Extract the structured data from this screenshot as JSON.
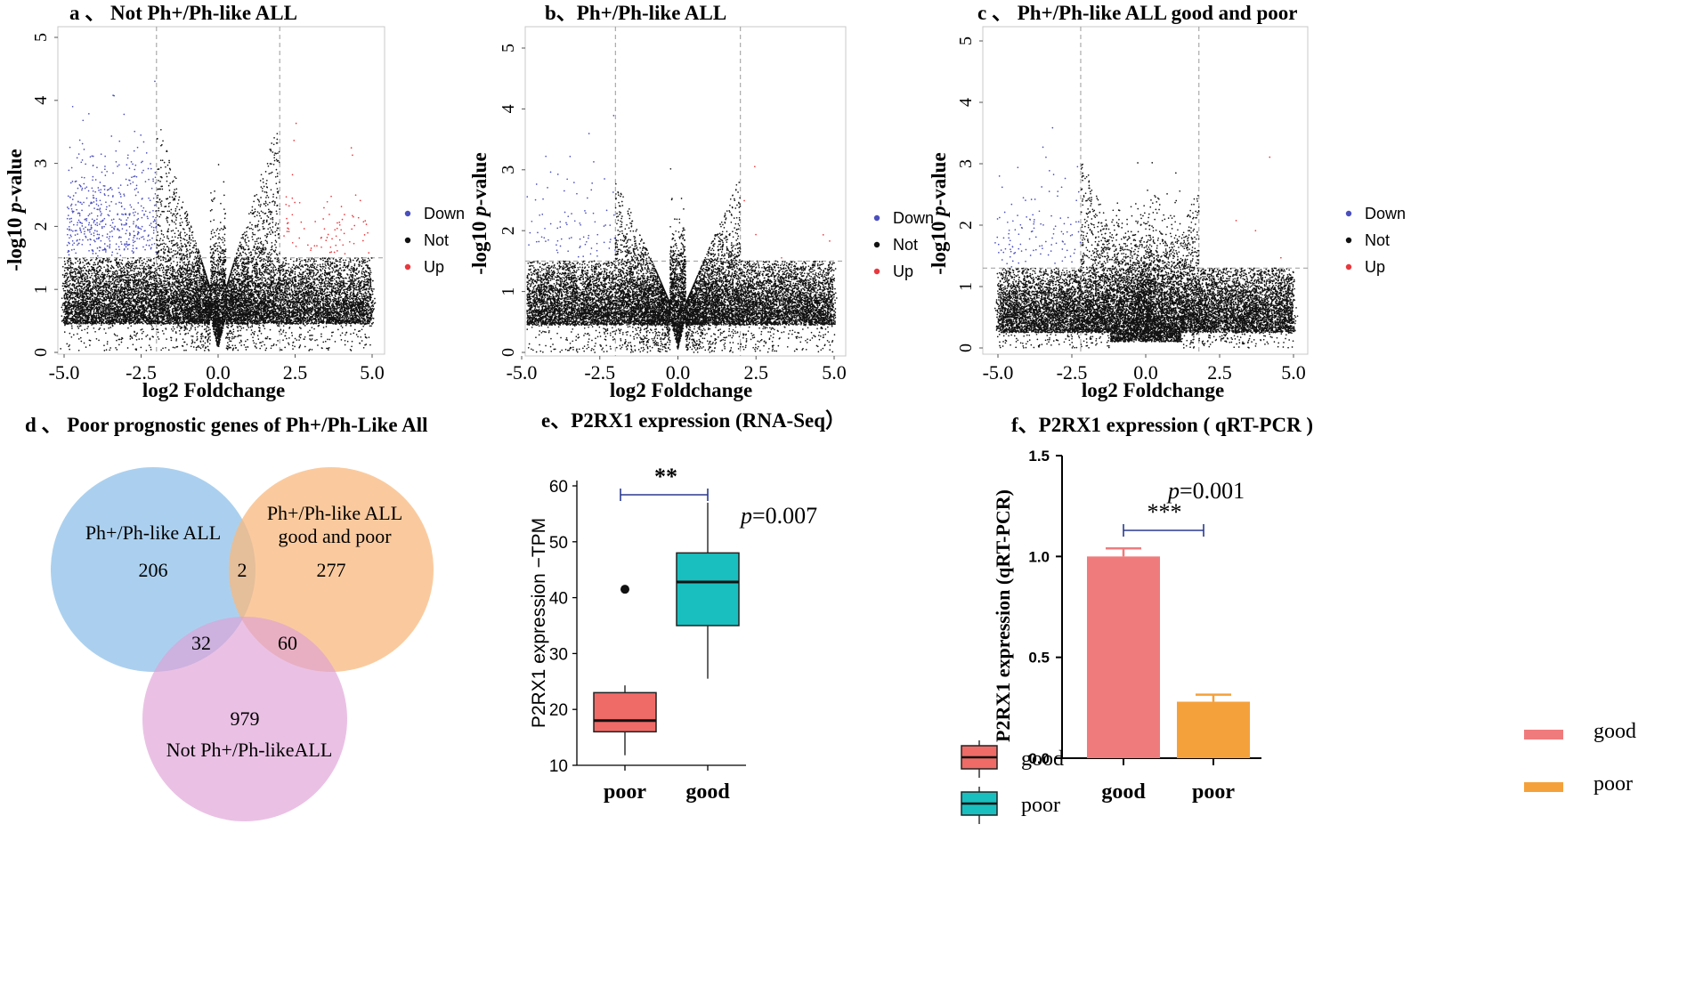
{
  "colors": {
    "down": "#4b4fbd",
    "not": "#111111",
    "up": "#e8383d",
    "venn_blue": "#8fc0ea",
    "venn_orange": "#f8b87e",
    "venn_pink": "#df9fd6",
    "box_good": "#ef6b67",
    "box_poor": "#19bfbf",
    "bar_good": "#f07b7d",
    "bar_poor": "#f5a13b",
    "bracket": "#2b3a8f"
  },
  "chart_data": [
    {
      "type": "scatter",
      "panel": "a",
      "title": "a 、 Not Ph+/Ph-like ALL",
      "xlabel": "log2 Foldchange",
      "ylabel_prefix": "-log10 ",
      "ylabel_italic": "p",
      "ylabel_suffix": "-value",
      "xlim": [
        -5.2,
        5.3
      ],
      "ylim": [
        0,
        5.2
      ],
      "xticks": [
        -5.0,
        -2.5,
        0.0,
        2.5,
        5.0
      ],
      "xtick_labels": [
        "-5.0",
        "-2.5",
        "0.0",
        "2.5",
        "5.0"
      ],
      "yticks": [
        0,
        1,
        2,
        3,
        4,
        5
      ],
      "ytick_labels": [
        "0",
        "1",
        "2",
        "3",
        "4",
        "5"
      ],
      "fc_threshold": [
        -2.0,
        2.0
      ],
      "p_threshold": 1.5,
      "legend": [
        "Down",
        "Not",
        "Up"
      ],
      "legend_position": "right",
      "n_down": 500,
      "n_up": 80,
      "n_not": 16000
    },
    {
      "type": "scatter",
      "panel": "b",
      "title": "b、Ph+/Ph-like ALL",
      "xlabel": "log2 Foldchange",
      "ylabel_prefix": "-log10 ",
      "ylabel_italic": "p",
      "ylabel_suffix": "-value",
      "xlim": [
        -5.2,
        5.3
      ],
      "ylim": [
        0,
        5.2
      ],
      "xticks": [
        -5.0,
        -2.5,
        0.0,
        2.5,
        5.0
      ],
      "xtick_labels": [
        "-5.0",
        "-2.5",
        "0.0",
        "2.5",
        "5.0"
      ],
      "yticks": [
        0,
        1,
        2,
        3,
        4,
        5
      ],
      "ytick_labels": [
        "0",
        "1",
        "2",
        "3",
        "4",
        "5"
      ],
      "fc_threshold": [
        -2.0,
        2.0
      ],
      "p_threshold": 1.5,
      "legend": [
        "Down",
        "Not",
        "Up"
      ],
      "legend_position": "right",
      "n_down": 90,
      "n_up": 6,
      "n_not": 16000
    },
    {
      "type": "scatter",
      "panel": "c",
      "title": "c 、 Ph+/Ph-like ALL good and poor",
      "xlabel": "log2 Foldchange",
      "ylabel_prefix": "-log10 ",
      "ylabel_italic": "p",
      "ylabel_suffix": "-value",
      "xlim": [
        -5.2,
        5.3
      ],
      "ylim": [
        0,
        5.2
      ],
      "xticks": [
        -5.0,
        -2.5,
        0.0,
        2.5,
        5.0
      ],
      "xtick_labels": [
        "-5.0",
        "-2.5",
        "0.0",
        "2.5",
        "5.0"
      ],
      "yticks": [
        0,
        1,
        2,
        3,
        4,
        5
      ],
      "ytick_labels": [
        "0",
        "1",
        "2",
        "3",
        "4",
        "5"
      ],
      "fc_threshold": [
        -2.2,
        1.8
      ],
      "p_threshold": 1.3,
      "legend": [
        "Down",
        "Not",
        "Up"
      ],
      "legend_position": "right",
      "n_down": 120,
      "n_up": 4,
      "n_not": 16000
    },
    {
      "type": "venn",
      "panel": "d",
      "title": "d 、 Poor prognostic genes of Ph+/Ph-Like All",
      "sets": [
        "Ph+/Ph-like ALL",
        "Ph+/Ph-like ALL good and poor",
        "Not Ph+/Ph-likeALL"
      ],
      "label_blue": "Ph+/Ph-like ALL",
      "label_orange_line1": "Ph+/Ph-like ALL",
      "label_orange_line2": "good and poor",
      "label_pink": "Not Ph+/Ph-likeALL",
      "counts": {
        "blue_only": "206",
        "blue_orange": "2",
        "orange_only": "277",
        "blue_pink": "32",
        "orange_pink": "60",
        "pink_only": "979"
      }
    },
    {
      "type": "box",
      "panel": "e",
      "title": "e、P2RX1 expression (RNA-Seq）",
      "ylabel": "P2RX1 expression −TPM",
      "categories": [
        "poor",
        "good"
      ],
      "ylim": [
        10,
        60
      ],
      "yticks": [
        10,
        20,
        30,
        40,
        50,
        60
      ],
      "ytick_labels": [
        "10",
        "20",
        "30",
        "40",
        "50",
        "60"
      ],
      "boxes": [
        {
          "name": "poor",
          "q1": 16.0,
          "median": 18.0,
          "q3": 23.0,
          "whisker_low": 11.8,
          "whisker_high": 24.3,
          "outliers": [
            41.5
          ]
        },
        {
          "name": "good",
          "q1": 35.0,
          "median": 42.8,
          "q3": 48.0,
          "whisker_low": 25.5,
          "whisker_high": 57.0,
          "outliers": []
        }
      ],
      "significance": "**",
      "p_prefix": "p",
      "p_value": "=0.007",
      "legend": [
        "good",
        "poor"
      ]
    },
    {
      "type": "bar",
      "panel": "f",
      "title": "f、P2RX1 expression ( qRT-PCR )",
      "ylabel": "P2RX1 expression (qRT-PCR)",
      "categories": [
        "good",
        "poor"
      ],
      "values": [
        1.0,
        0.28
      ],
      "errors": [
        0.04,
        0.035
      ],
      "ylim": [
        0,
        1.5
      ],
      "yticks": [
        0.0,
        0.5,
        1.0,
        1.5
      ],
      "ytick_labels": [
        "0.0",
        "0.5",
        "1.0",
        "1.5"
      ],
      "significance": "***",
      "p_prefix": "p",
      "p_value": "=0.001",
      "legend": [
        "good",
        "poor"
      ]
    }
  ]
}
